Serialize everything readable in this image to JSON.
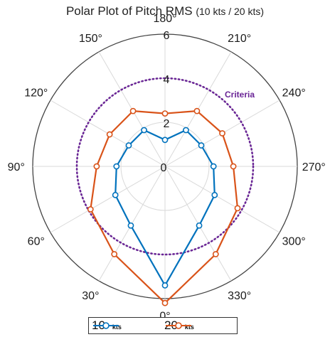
{
  "chart_data": {
    "type": "polar",
    "title": "Polar Plot of Pitch RMS",
    "title_suffix": "(10 kts / 20 kts)",
    "theta_ticks": [
      "0°",
      "30°",
      "60°",
      "90°",
      "120°",
      "150°",
      "180°",
      "210°",
      "240°",
      "270°",
      "300°",
      "330°"
    ],
    "r_ticks": [
      "0",
      "2",
      "4",
      "6"
    ],
    "rlim": [
      0,
      6
    ],
    "theta_zero_location": "bottom",
    "theta_direction": "clockwise",
    "grid": true,
    "legend_position": "bottom-center",
    "criteria": {
      "label": "Criteria",
      "r": 4,
      "color": "#6a2596",
      "style": "dotted"
    },
    "series": [
      {
        "name": "10",
        "unit": "kts",
        "color": "#0072bd",
        "theta": [
          0,
          30,
          60,
          90,
          120,
          150,
          180,
          210,
          240,
          270,
          300,
          330
        ],
        "r": [
          5.4,
          3.1,
          2.6,
          2.2,
          1.9,
          1.9,
          1.2,
          1.9,
          1.9,
          2.2,
          2.6,
          3.1
        ]
      },
      {
        "name": "20",
        "unit": "kts",
        "color": "#d95319",
        "theta": [
          0,
          30,
          60,
          90,
          120,
          150,
          180,
          210,
          240,
          270,
          300,
          330
        ],
        "r": [
          6.2,
          4.6,
          3.9,
          3.1,
          2.9,
          2.9,
          2.4,
          2.9,
          3.0,
          3.1,
          3.8,
          4.6
        ]
      }
    ]
  }
}
